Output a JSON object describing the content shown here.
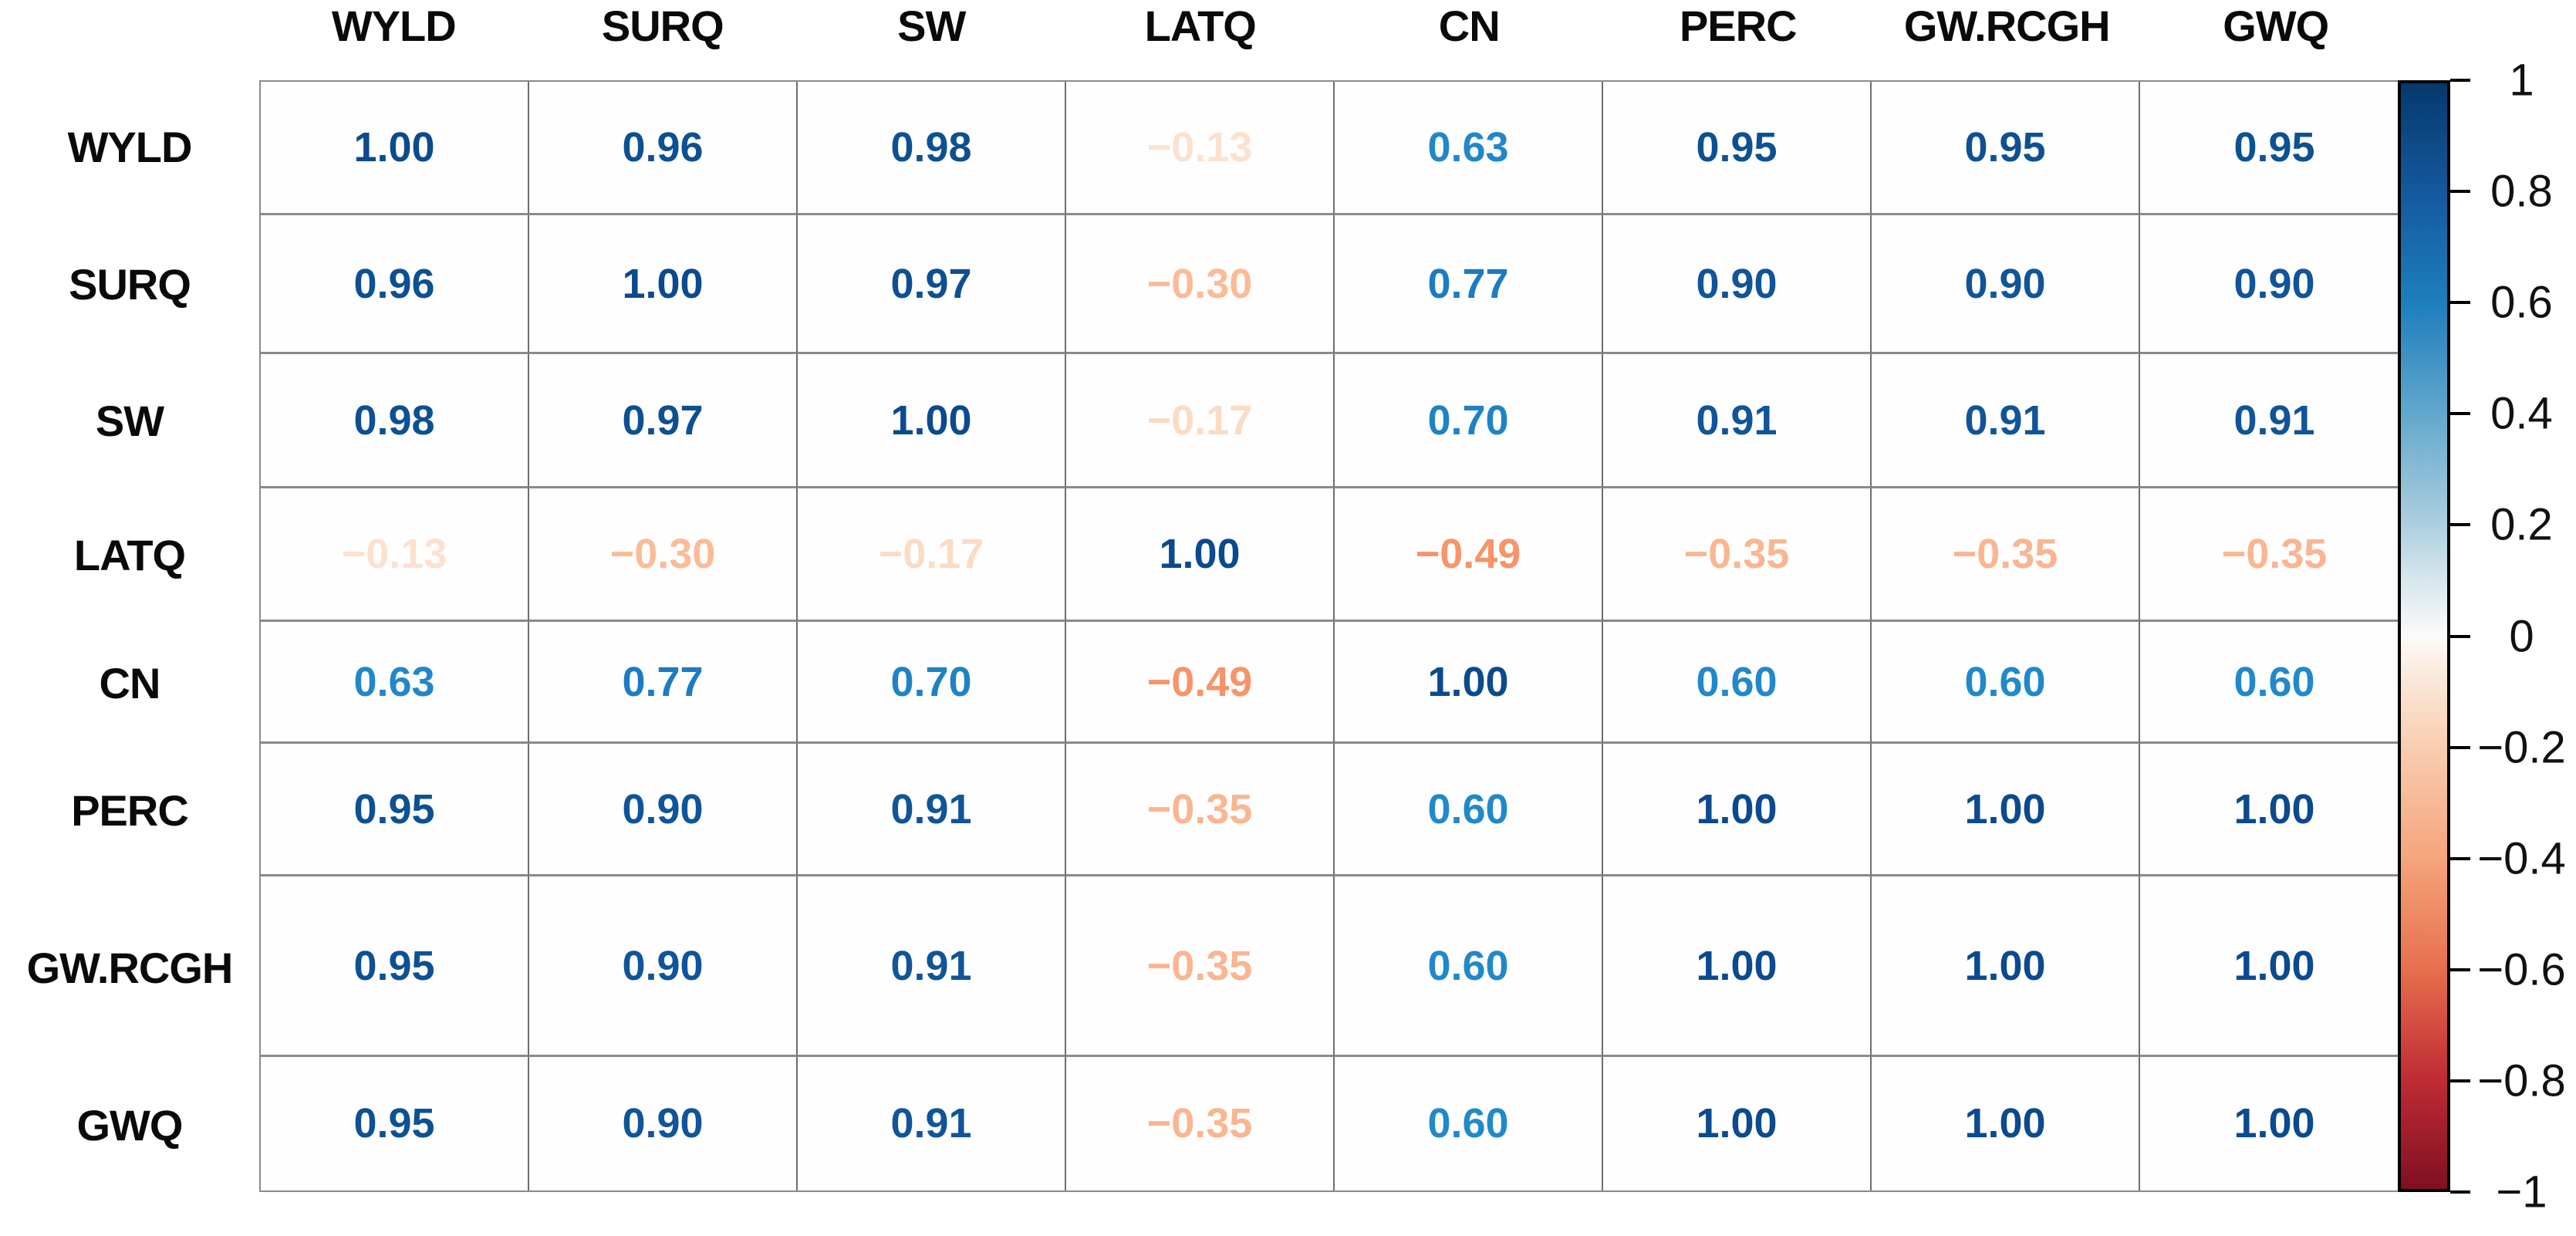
{
  "chart_data": {
    "type": "heatmap",
    "subtype": "correlation-matrix",
    "title": "",
    "variables": [
      "WYLD",
      "SURQ",
      "SW",
      "LATQ",
      "CN",
      "PERC",
      "GW.RCGH",
      "GWQ"
    ],
    "matrix": [
      [
        "1.00",
        "0.96",
        "0.98",
        "-0.13",
        "0.63",
        "0.95",
        "0.95",
        "0.95"
      ],
      [
        "0.96",
        "1.00",
        "0.97",
        "-0.30",
        "0.77",
        "0.90",
        "0.90",
        "0.90"
      ],
      [
        "0.98",
        "0.97",
        "1.00",
        "-0.17",
        "0.70",
        "0.91",
        "0.91",
        "0.91"
      ],
      [
        "-0.13",
        "-0.30",
        "-0.17",
        "1.00",
        "-0.49",
        "-0.35",
        "-0.35",
        "-0.35"
      ],
      [
        "0.63",
        "0.77",
        "0.70",
        "-0.49",
        "1.00",
        "0.60",
        "0.60",
        "0.60"
      ],
      [
        "0.95",
        "0.90",
        "0.91",
        "-0.35",
        "0.60",
        "1.00",
        "1.00",
        "1.00"
      ],
      [
        "0.95",
        "0.90",
        "0.91",
        "-0.35",
        "0.60",
        "1.00",
        "1.00",
        "1.00"
      ],
      [
        "0.95",
        "0.90",
        "0.91",
        "-0.35",
        "0.60",
        "1.00",
        "1.00",
        "1.00"
      ]
    ],
    "value_text_colors": {
      "1.00": "#0b4a8e",
      "0.98": "#0d5092",
      "0.97": "#0d5092",
      "0.96": "#0d5092",
      "0.95": "#0e5193",
      "0.91": "#10549a",
      "0.90": "#10549a",
      "0.77": "#1c7cc2",
      "0.70": "#1e83c5",
      "0.63": "#2187c9",
      "0.60": "#2089ca",
      "-0.13": "#fce1d0",
      "-0.17": "#fbdbc4",
      "-0.30": "#fbbb97",
      "-0.35": "#fab591",
      "-0.49": "#f8936a"
    },
    "legend_position": "right",
    "grid_on": true,
    "colorbar": {
      "range_top": 1,
      "range_bottom": -1,
      "tick_labels": [
        "1",
        "0.8",
        "0.6",
        "0.4",
        "0.2",
        "0",
        "-0.2",
        "-0.4",
        "-0.6",
        "-0.8",
        "-1"
      ],
      "gradient_stops": [
        {
          "pos": 0.0,
          "color": "#07386d"
        },
        {
          "pos": 0.1,
          "color": "#135a9e"
        },
        {
          "pos": 0.2,
          "color": "#1f7ebd"
        },
        {
          "pos": 0.3,
          "color": "#62a8cc"
        },
        {
          "pos": 0.4,
          "color": "#aecfe0"
        },
        {
          "pos": 0.45,
          "color": "#d8e7ed"
        },
        {
          "pos": 0.5,
          "color": "#fcfaf8"
        },
        {
          "pos": 0.55,
          "color": "#fae3d2"
        },
        {
          "pos": 0.6,
          "color": "#f9cdb0"
        },
        {
          "pos": 0.7,
          "color": "#f5a57c"
        },
        {
          "pos": 0.8,
          "color": "#e7704e"
        },
        {
          "pos": 0.9,
          "color": "#c02c34"
        },
        {
          "pos": 1.0,
          "color": "#7f1022"
        }
      ]
    }
  }
}
